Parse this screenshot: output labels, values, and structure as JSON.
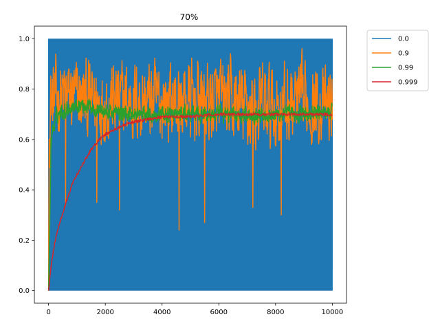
{
  "chart_data": {
    "type": "line",
    "title": "70%",
    "xlabel": "",
    "ylabel": "",
    "xlim": [
      -500,
      10500
    ],
    "ylim": [
      -0.05,
      1.05
    ],
    "x_ticks": [
      0,
      2000,
      4000,
      6000,
      8000,
      10000
    ],
    "y_ticks": [
      0.0,
      0.2,
      0.4,
      0.6,
      0.8,
      1.0
    ],
    "x_tick_labels": [
      "0",
      "2000",
      "4000",
      "6000",
      "8000",
      "10000"
    ],
    "y_tick_labels": [
      "0.0",
      "0.2",
      "0.4",
      "0.6",
      "0.8",
      "1.0"
    ],
    "grid": false,
    "legend_position": "outside-top-right",
    "x_domain": [
      0,
      10000
    ],
    "series": [
      {
        "name": "0.0",
        "color": "#1f77b4",
        "style": "dense oscillation between 0 and 1",
        "min": 0.0,
        "max": 1.0
      },
      {
        "name": "0.9",
        "color": "#ff7f0e",
        "style": "noisy band",
        "envelope_x": [
          0,
          50,
          500,
          1500,
          2500,
          4000,
          5000,
          6000,
          7000,
          8000,
          9000,
          10000
        ],
        "envelope_low": [
          0.0,
          0.45,
          0.5,
          0.45,
          0.45,
          0.45,
          0.45,
          0.45,
          0.4,
          0.4,
          0.45,
          0.45
        ],
        "envelope_high": [
          0.0,
          0.95,
          0.95,
          0.95,
          0.95,
          0.95,
          0.95,
          0.95,
          0.95,
          0.95,
          0.95,
          0.9
        ],
        "outliers": [
          {
            "x": 600,
            "y": 0.34
          },
          {
            "x": 1700,
            "y": 0.35
          },
          {
            "x": 2500,
            "y": 0.32
          },
          {
            "x": 4600,
            "y": 0.24
          },
          {
            "x": 5500,
            "y": 0.27
          },
          {
            "x": 7200,
            "y": 0.33
          },
          {
            "x": 8200,
            "y": 0.3
          }
        ]
      },
      {
        "name": "0.99",
        "color": "#2ca02c",
        "style": "moderate noise around mean",
        "x": [
          0,
          100,
          300,
          600,
          1000,
          1500,
          2000,
          3000,
          4000,
          5000,
          6000,
          7000,
          8000,
          9000,
          10000
        ],
        "y": [
          0.0,
          0.62,
          0.7,
          0.72,
          0.74,
          0.73,
          0.71,
          0.7,
          0.7,
          0.7,
          0.7,
          0.7,
          0.7,
          0.7,
          0.71
        ],
        "noise": 0.05
      },
      {
        "name": "0.999",
        "color": "#d62728",
        "style": "smooth rise",
        "x": [
          0,
          100,
          200,
          300,
          500,
          700,
          900,
          1200,
          1500,
          1800,
          2000,
          2500,
          3000,
          3500,
          4000,
          5000,
          6000,
          7000,
          8000,
          9000,
          10000
        ],
        "y": [
          0.0,
          0.11,
          0.18,
          0.23,
          0.31,
          0.38,
          0.44,
          0.5,
          0.56,
          0.6,
          0.62,
          0.65,
          0.67,
          0.68,
          0.69,
          0.69,
          0.7,
          0.7,
          0.7,
          0.7,
          0.7
        ],
        "noise": 0.006
      }
    ]
  }
}
